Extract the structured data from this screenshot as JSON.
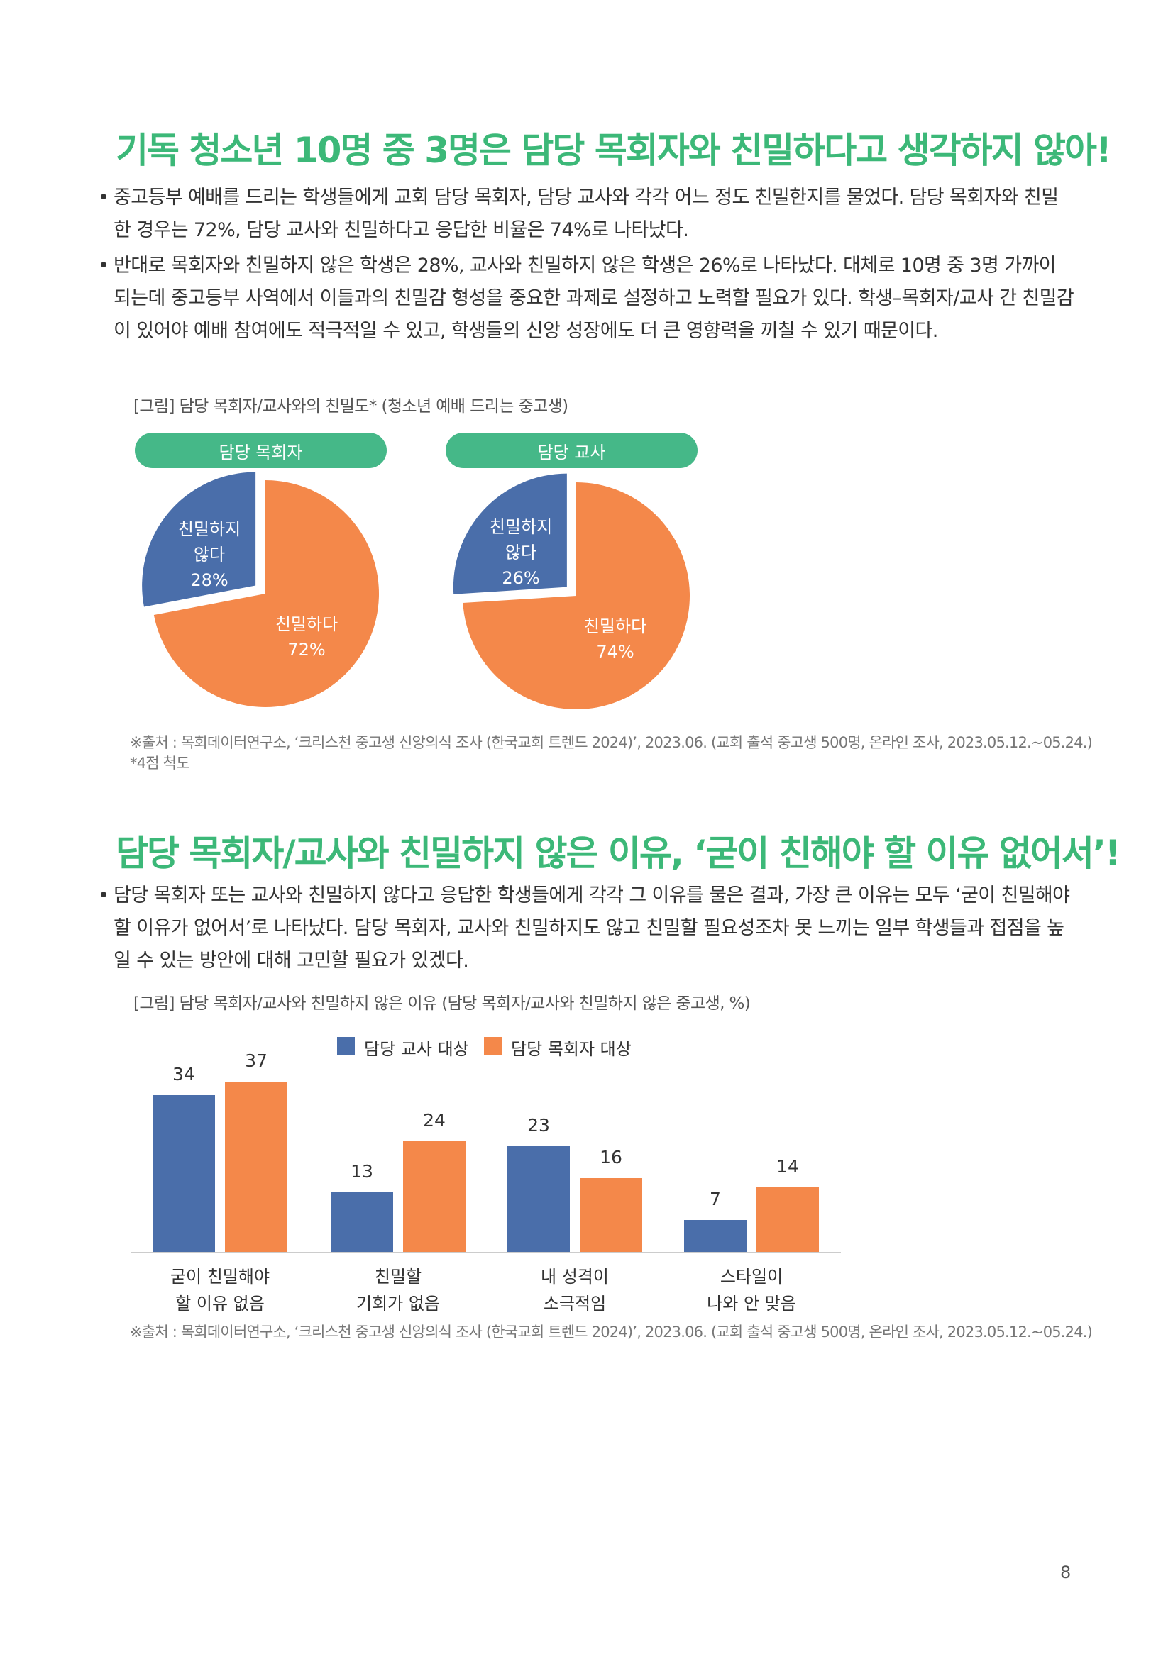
{
  "section1": {
    "heading": "기독 청소년 10명 중 3명은 담당 목회자와 친밀하다고 생각하지 않아!",
    "bullets": [
      "중고등부 예배를 드리는 학생들에게 교회 담당 목회자, 담당 교사와 각각 어느 정도 친밀한지를 물었다. 담당 목회자와 친밀한 경우는 72%, 담당 교사와 친밀하다고 응답한 비율은 74%로 나타났다.",
      "반대로 목회자와 친밀하지 않은 학생은 28%, 교사와 친밀하지 않은 학생은 26%로 나타났다. 대체로 10명 중 3명 가까이 되는데 중고등부 사역에서 이들과의 친밀감 형성을 중요한 과제로 설정하고 노력할 필요가 있다. 학생–목회자/교사 간 친밀감이 있어야 예배 참여에도 적극적일 수 있고, 학생들의 신앙 성장에도 더 큰 영향력을 끼칠 수 있기 때문이다."
    ],
    "caption": "[그림] 담당 목회자/교사와의 친밀도* (청소년 예배 드리는 중고생)",
    "source": "※출처 : 목회데이터연구소, ‘크리스천 중고생 신앙의식 조사 (한국교회 트렌드 2024)’, 2023.06. (교회 출석 중고생 500명, 온라인 조사, 2023.05.12.~05.24.)",
    "note": "*4점 척도"
  },
  "section2": {
    "heading": "담당 목회자/교사와 친밀하지 않은 이유, ‘굳이 친해야 할 이유 없어서’!",
    "bullets": [
      "담당 목회자 또는 교사와 친밀하지 않다고 응답한 학생들에게 각각 그 이유를 물은 결과, 가장 큰 이유는 모두 ‘굳이 친밀해야 할 이유가 없어서’로 나타났다. 담당 목회자, 교사와 친밀하지도 않고 친밀할 필요성조차 못 느끼는 일부 학생들과 접점을 높일 수 있는 방안에 대해 고민할 필요가 있겠다."
    ],
    "caption": "[그림] 담당 목회자/교사와 친밀하지 않은 이유 (담당 목회자/교사와 친밀하지 않은 중고생, %)",
    "source": "※출처 : 목회데이터연구소, ‘크리스천 중고생 신앙의식 조사 (한국교회 트렌드 2024)’, 2023.06. (교회 출석 중고생 500명, 온라인 조사, 2023.05.12.~05.24.)"
  },
  "page_number": "8",
  "colors": {
    "green": "#3cb878",
    "pill": "#45b888",
    "blue": "#4a6eaa",
    "orange": "#f4884a"
  },
  "chart_data": [
    {
      "type": "pie",
      "title": "담당 목회자",
      "slices": [
        {
          "label": "친밀하지 않다",
          "value": 28,
          "value_text": "28%"
        },
        {
          "label": "친밀하다",
          "value": 72,
          "value_text": "72%"
        }
      ]
    },
    {
      "type": "pie",
      "title": "담당 교사",
      "slices": [
        {
          "label": "친밀하지 않다",
          "value": 26,
          "value_text": "26%"
        },
        {
          "label": "친밀하다",
          "value": 74,
          "value_text": "74%"
        }
      ]
    },
    {
      "type": "bar",
      "categories": [
        "굳이 친밀해야 할 이유 없음",
        "친밀할 기회가 없음",
        "내 성격이 소극적임",
        "스타일이 나와 안 맞음"
      ],
      "category_lines": [
        [
          "굳이 친밀해야",
          "할 이유 없음"
        ],
        [
          "친밀할",
          "기회가 없음"
        ],
        [
          "내 성격이",
          "소극적임"
        ],
        [
          "스타일이",
          "나와 안 맞음"
        ]
      ],
      "series": [
        {
          "name": "담당 교사 대상",
          "color": "#4a6eaa",
          "values": [
            34,
            13,
            23,
            7
          ]
        },
        {
          "name": "담당 목회자 대상",
          "color": "#f4884a",
          "values": [
            37,
            24,
            16,
            14
          ]
        }
      ],
      "ylim": [
        0,
        40
      ],
      "legend": "top"
    }
  ]
}
